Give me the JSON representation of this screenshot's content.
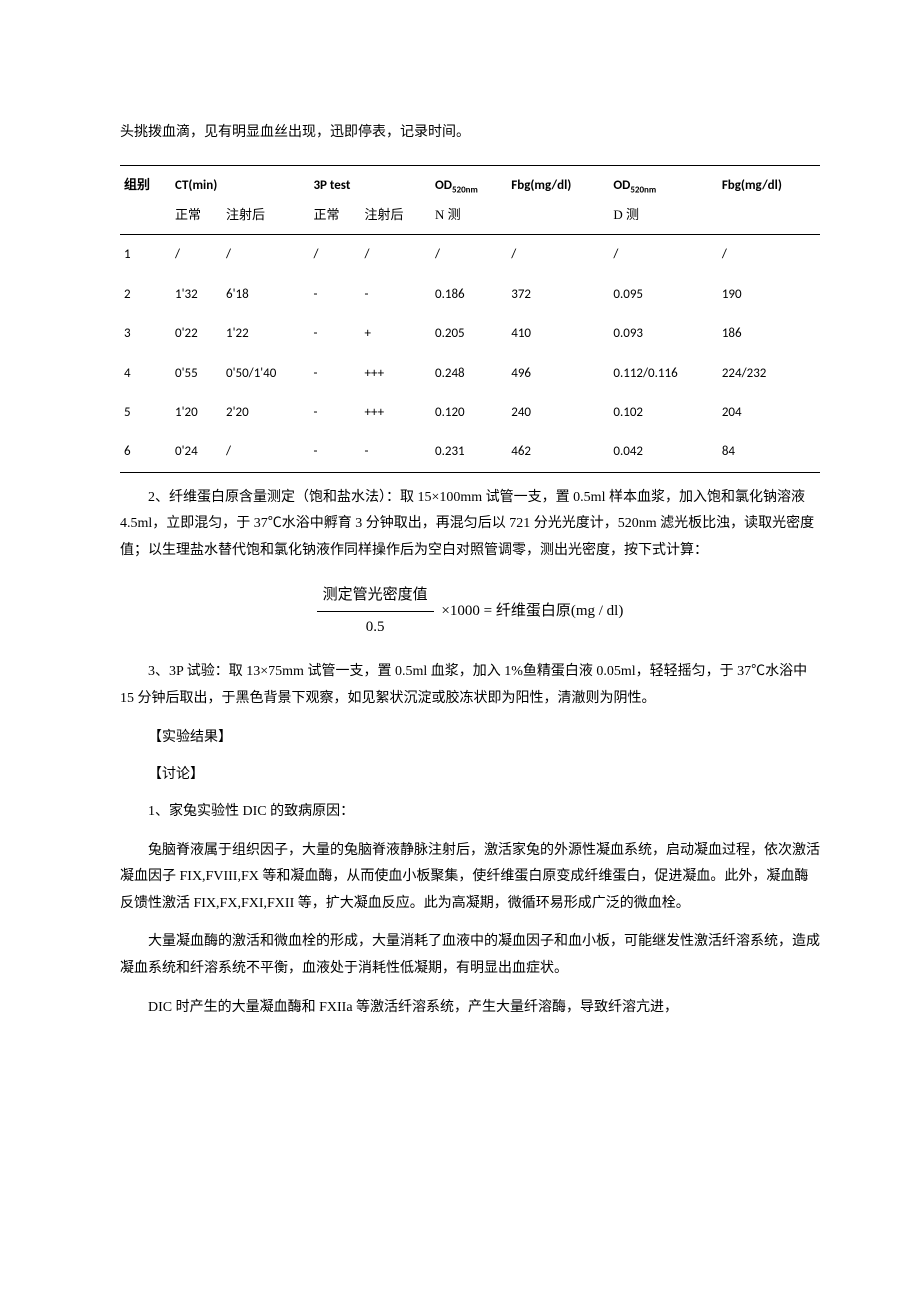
{
  "intro": "头挑拨血滴，见有明显血丝出现，迅即停表，记录时间。",
  "table": {
    "headers": {
      "group": "组别",
      "ct": "CT(min)",
      "p3": "3P test",
      "od1": "OD",
      "od1_sub": "520nm",
      "fbg1": "Fbg(mg/dl)",
      "od2": "OD",
      "od2_sub": "520nm",
      "fbg2": "Fbg(mg/dl)"
    },
    "subheaders": {
      "ct_normal": "正常",
      "ct_after": "注射后",
      "p3_normal": "正常",
      "p3_after": "注射后",
      "n_test": "N 测",
      "d_test": "D 测"
    },
    "rows": [
      {
        "g": "1",
        "ctn": "/",
        "cta": "/",
        "p3n": "/",
        "p3a": "/",
        "odn": "/",
        "fbgn": "/",
        "odd": "/",
        "fbgd": "/"
      },
      {
        "g": "2",
        "ctn": "1'32",
        "cta": "6'18",
        "p3n": "-",
        "p3a": "-",
        "odn": "0.186",
        "fbgn": "372",
        "odd": "0.095",
        "fbgd": "190"
      },
      {
        "g": "3",
        "ctn": "0'22",
        "cta": "1'22",
        "p3n": "-",
        "p3a": "+",
        "odn": "0.205",
        "fbgn": "410",
        "odd": "0.093",
        "fbgd": "186"
      },
      {
        "g": "4",
        "ctn": "0'55",
        "cta": "0'50/1'40",
        "p3n": "-",
        "p3a": "+++",
        "odn": "0.248",
        "fbgn": "496",
        "odd": "0.112/0.116",
        "fbgd": "224/232"
      },
      {
        "g": "5",
        "ctn": "1'20",
        "cta": "2'20",
        "p3n": "-",
        "p3a": "+++",
        "odn": "0.120",
        "fbgn": "240",
        "odd": "0.102",
        "fbgd": "204"
      },
      {
        "g": "6",
        "ctn": "0'24",
        "cta": "/",
        "p3n": "-",
        "p3a": "-",
        "odn": "0.231",
        "fbgn": "462",
        "odd": "0.042",
        "fbgd": "84"
      }
    ]
  },
  "para2": "2、纤维蛋白原含量测定（饱和盐水法）：取 15×100mm 试管一支，置 0.5ml 样本血浆，加入饱和氯化钠溶液 4.5ml，立即混匀，于 37℃水浴中孵育 3 分钟取出，再混匀后以 721 分光光度计，520nm 滤光板比浊，读取光密度值；以生理盐水替代饱和氯化钠液作同样操作后为空白对照管调零，测出光密度，按下式计算：",
  "formula": {
    "numerator": "测定管光密度值",
    "denominator": "0.5",
    "rest": "×1000 = 纤维蛋白原(mg / dl)"
  },
  "para3": "3、3P 试验：取 13×75mm 试管一支，置 0.5ml 血浆，加入 1%鱼精蛋白液 0.05ml，轻轻摇匀，于 37℃水浴中 15 分钟后取出，于黑色背景下观察，如见絮状沉淀或胶冻状即为阳性，清澈则为阴性。",
  "results_label": "【实验结果】",
  "discussion_label": "【讨论】",
  "discussion_q1": "1、家兔实验性 DIC 的致病原因：",
  "discussion_p1": "兔脑脊液属于组织因子，大量的兔脑脊液静脉注射后，激活家兔的外源性凝血系统，启动凝血过程，依次激活凝血因子 FIX,FVIII,FX 等和凝血酶，从而使血小板聚集，使纤维蛋白原变成纤维蛋白，促进凝血。此外，凝血酶反馈性激活 FIX,FX,FXI,FXII 等，扩大凝血反应。此为高凝期，微循环易形成广泛的微血栓。",
  "discussion_p2": "大量凝血酶的激活和微血栓的形成，大量消耗了血液中的凝血因子和血小板，可能继发性激活纤溶系统，造成凝血系统和纤溶系统不平衡，血液处于消耗性低凝期，有明显出血症状。",
  "discussion_p3": "DIC 时产生的大量凝血酶和 FXIIa 等激活纤溶系统，产生大量纤溶酶，导致纤溶亢进，"
}
